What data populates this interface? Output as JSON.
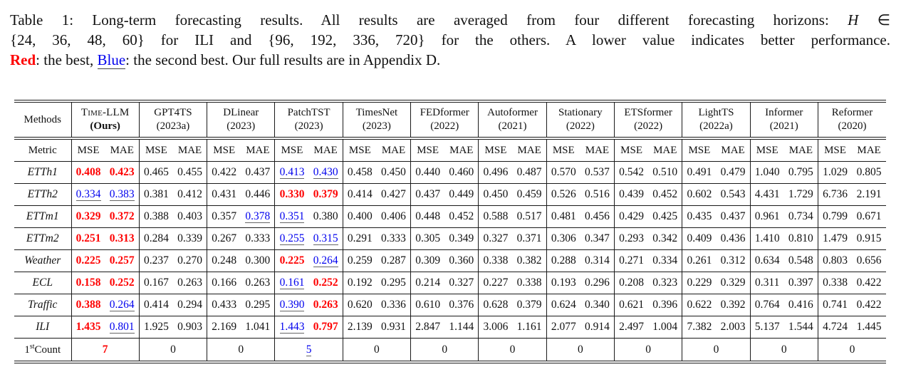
{
  "colors": {
    "best": "#fe0000",
    "second": "#0000ee",
    "text": "#111111",
    "rule": "#1a1a1a"
  },
  "caption": {
    "line1a": "Table 1: Long-term forecasting results. All results are averaged from four different forecasting horizons: ",
    "line1_h": "H",
    "line1b": " ∈",
    "line2": "{24, 36, 48, 60} for ILI and {96, 192, 336, 720} for the others. A lower value indicates better performance.",
    "line3_red": "Red",
    "line3a": ": the best, ",
    "line3_blue": "Blue",
    "line3b": ": the second best. Our full results are in Appendix D."
  },
  "table": {
    "corner_label": "Methods",
    "metric_label": "Metric",
    "metric_names": [
      "MSE",
      "MAE"
    ],
    "methods": [
      {
        "name": "Time-LLM",
        "year": "(Ours)",
        "smallcaps": true,
        "year_bold": true
      },
      {
        "name": "GPT4TS",
        "year": "(2023a)"
      },
      {
        "name": "DLinear",
        "year": "(2023)"
      },
      {
        "name": "PatchTST",
        "year": "(2023)"
      },
      {
        "name": "TimesNet",
        "year": "(2023)"
      },
      {
        "name": "FEDformer",
        "year": "(2022)"
      },
      {
        "name": "Autoformer",
        "year": "(2021)"
      },
      {
        "name": "Stationary",
        "year": "(2022)"
      },
      {
        "name": "ETSformer",
        "year": "(2022)"
      },
      {
        "name": "LightTS",
        "year": "(2022a)"
      },
      {
        "name": "Informer",
        "year": "(2021)"
      },
      {
        "name": "Reformer",
        "year": "(2020)"
      }
    ],
    "rows": [
      {
        "label": "ETTh1",
        "cells": [
          [
            "0.408",
            "b"
          ],
          [
            "0.423",
            "b"
          ],
          [
            "0.465",
            ""
          ],
          [
            "0.455",
            ""
          ],
          [
            "0.422",
            ""
          ],
          [
            "0.437",
            ""
          ],
          [
            "0.413",
            "s"
          ],
          [
            "0.430",
            "s"
          ],
          [
            "0.458",
            ""
          ],
          [
            "0.450",
            ""
          ],
          [
            "0.440",
            ""
          ],
          [
            "0.460",
            ""
          ],
          [
            "0.496",
            ""
          ],
          [
            "0.487",
            ""
          ],
          [
            "0.570",
            ""
          ],
          [
            "0.537",
            ""
          ],
          [
            "0.542",
            ""
          ],
          [
            "0.510",
            ""
          ],
          [
            "0.491",
            ""
          ],
          [
            "0.479",
            ""
          ],
          [
            "1.040",
            ""
          ],
          [
            "0.795",
            ""
          ],
          [
            "1.029",
            ""
          ],
          [
            "0.805",
            ""
          ]
        ]
      },
      {
        "label": "ETTh2",
        "cells": [
          [
            "0.334",
            "s"
          ],
          [
            "0.383",
            "s"
          ],
          [
            "0.381",
            ""
          ],
          [
            "0.412",
            ""
          ],
          [
            "0.431",
            ""
          ],
          [
            "0.446",
            ""
          ],
          [
            "0.330",
            "b"
          ],
          [
            "0.379",
            "b"
          ],
          [
            "0.414",
            ""
          ],
          [
            "0.427",
            ""
          ],
          [
            "0.437",
            ""
          ],
          [
            "0.449",
            ""
          ],
          [
            "0.450",
            ""
          ],
          [
            "0.459",
            ""
          ],
          [
            "0.526",
            ""
          ],
          [
            "0.516",
            ""
          ],
          [
            "0.439",
            ""
          ],
          [
            "0.452",
            ""
          ],
          [
            "0.602",
            ""
          ],
          [
            "0.543",
            ""
          ],
          [
            "4.431",
            ""
          ],
          [
            "1.729",
            ""
          ],
          [
            "6.736",
            ""
          ],
          [
            "2.191",
            ""
          ]
        ]
      },
      {
        "label": "ETTm1",
        "cells": [
          [
            "0.329",
            "b"
          ],
          [
            "0.372",
            "b"
          ],
          [
            "0.388",
            ""
          ],
          [
            "0.403",
            ""
          ],
          [
            "0.357",
            ""
          ],
          [
            "0.378",
            "s"
          ],
          [
            "0.351",
            "s"
          ],
          [
            "0.380",
            ""
          ],
          [
            "0.400",
            ""
          ],
          [
            "0.406",
            ""
          ],
          [
            "0.448",
            ""
          ],
          [
            "0.452",
            ""
          ],
          [
            "0.588",
            ""
          ],
          [
            "0.517",
            ""
          ],
          [
            "0.481",
            ""
          ],
          [
            "0.456",
            ""
          ],
          [
            "0.429",
            ""
          ],
          [
            "0.425",
            ""
          ],
          [
            "0.435",
            ""
          ],
          [
            "0.437",
            ""
          ],
          [
            "0.961",
            ""
          ],
          [
            "0.734",
            ""
          ],
          [
            "0.799",
            ""
          ],
          [
            "0.671",
            ""
          ]
        ]
      },
      {
        "label": "ETTm2",
        "cells": [
          [
            "0.251",
            "b"
          ],
          [
            "0.313",
            "b"
          ],
          [
            "0.284",
            ""
          ],
          [
            "0.339",
            ""
          ],
          [
            "0.267",
            ""
          ],
          [
            "0.333",
            ""
          ],
          [
            "0.255",
            "s"
          ],
          [
            "0.315",
            "s"
          ],
          [
            "0.291",
            ""
          ],
          [
            "0.333",
            ""
          ],
          [
            "0.305",
            ""
          ],
          [
            "0.349",
            ""
          ],
          [
            "0.327",
            ""
          ],
          [
            "0.371",
            ""
          ],
          [
            "0.306",
            ""
          ],
          [
            "0.347",
            ""
          ],
          [
            "0.293",
            ""
          ],
          [
            "0.342",
            ""
          ],
          [
            "0.409",
            ""
          ],
          [
            "0.436",
            ""
          ],
          [
            "1.410",
            ""
          ],
          [
            "0.810",
            ""
          ],
          [
            "1.479",
            ""
          ],
          [
            "0.915",
            ""
          ]
        ]
      },
      {
        "label": "Weather",
        "cells": [
          [
            "0.225",
            "b"
          ],
          [
            "0.257",
            "b"
          ],
          [
            "0.237",
            ""
          ],
          [
            "0.270",
            ""
          ],
          [
            "0.248",
            ""
          ],
          [
            "0.300",
            ""
          ],
          [
            "0.225",
            "b"
          ],
          [
            "0.264",
            "s"
          ],
          [
            "0.259",
            ""
          ],
          [
            "0.287",
            ""
          ],
          [
            "0.309",
            ""
          ],
          [
            "0.360",
            ""
          ],
          [
            "0.338",
            ""
          ],
          [
            "0.382",
            ""
          ],
          [
            "0.288",
            ""
          ],
          [
            "0.314",
            ""
          ],
          [
            "0.271",
            ""
          ],
          [
            "0.334",
            ""
          ],
          [
            "0.261",
            ""
          ],
          [
            "0.312",
            ""
          ],
          [
            "0.634",
            ""
          ],
          [
            "0.548",
            ""
          ],
          [
            "0.803",
            ""
          ],
          [
            "0.656",
            ""
          ]
        ]
      },
      {
        "label": "ECL",
        "cells": [
          [
            "0.158",
            "b"
          ],
          [
            "0.252",
            "b"
          ],
          [
            "0.167",
            ""
          ],
          [
            "0.263",
            ""
          ],
          [
            "0.166",
            ""
          ],
          [
            "0.263",
            ""
          ],
          [
            "0.161",
            "s"
          ],
          [
            "0.252",
            "b"
          ],
          [
            "0.192",
            ""
          ],
          [
            "0.295",
            ""
          ],
          [
            "0.214",
            ""
          ],
          [
            "0.327",
            ""
          ],
          [
            "0.227",
            ""
          ],
          [
            "0.338",
            ""
          ],
          [
            "0.193",
            ""
          ],
          [
            "0.296",
            ""
          ],
          [
            "0.208",
            ""
          ],
          [
            "0.323",
            ""
          ],
          [
            "0.229",
            ""
          ],
          [
            "0.329",
            ""
          ],
          [
            "0.311",
            ""
          ],
          [
            "0.397",
            ""
          ],
          [
            "0.338",
            ""
          ],
          [
            "0.422",
            ""
          ]
        ]
      },
      {
        "label": "Traffic",
        "cells": [
          [
            "0.388",
            "b"
          ],
          [
            "0.264",
            "s"
          ],
          [
            "0.414",
            ""
          ],
          [
            "0.294",
            ""
          ],
          [
            "0.433",
            ""
          ],
          [
            "0.295",
            ""
          ],
          [
            "0.390",
            "s"
          ],
          [
            "0.263",
            "b"
          ],
          [
            "0.620",
            ""
          ],
          [
            "0.336",
            ""
          ],
          [
            "0.610",
            ""
          ],
          [
            "0.376",
            ""
          ],
          [
            "0.628",
            ""
          ],
          [
            "0.379",
            ""
          ],
          [
            "0.624",
            ""
          ],
          [
            "0.340",
            ""
          ],
          [
            "0.621",
            ""
          ],
          [
            "0.396",
            ""
          ],
          [
            "0.622",
            ""
          ],
          [
            "0.392",
            ""
          ],
          [
            "0.764",
            ""
          ],
          [
            "0.416",
            ""
          ],
          [
            "0.741",
            ""
          ],
          [
            "0.422",
            ""
          ]
        ]
      },
      {
        "label": "ILI",
        "cells": [
          [
            "1.435",
            "b"
          ],
          [
            "0.801",
            "s"
          ],
          [
            "1.925",
            ""
          ],
          [
            "0.903",
            ""
          ],
          [
            "2.169",
            ""
          ],
          [
            "1.041",
            ""
          ],
          [
            "1.443",
            "s"
          ],
          [
            "0.797",
            "b"
          ],
          [
            "2.139",
            ""
          ],
          [
            "0.931",
            ""
          ],
          [
            "2.847",
            ""
          ],
          [
            "1.144",
            ""
          ],
          [
            "3.006",
            ""
          ],
          [
            "1.161",
            ""
          ],
          [
            "2.077",
            ""
          ],
          [
            "0.914",
            ""
          ],
          [
            "2.497",
            ""
          ],
          [
            "1.004",
            ""
          ],
          [
            "7.382",
            ""
          ],
          [
            "2.003",
            ""
          ],
          [
            "5.137",
            ""
          ],
          [
            "1.544",
            ""
          ],
          [
            "4.724",
            ""
          ],
          [
            "1.445",
            ""
          ]
        ]
      }
    ],
    "count_label": {
      "prefix": "1",
      "sup": "st",
      "text": "Count"
    },
    "count_row": {
      "values": [
        [
          "7",
          "b"
        ],
        [
          "0",
          ""
        ],
        [
          "0",
          ""
        ],
        [
          "5",
          "s"
        ],
        [
          "0",
          ""
        ],
        [
          "0",
          ""
        ],
        [
          "0",
          ""
        ],
        [
          "0",
          ""
        ],
        [
          "0",
          ""
        ],
        [
          "0",
          ""
        ],
        [
          "0",
          ""
        ],
        [
          "0",
          ""
        ]
      ]
    }
  }
}
